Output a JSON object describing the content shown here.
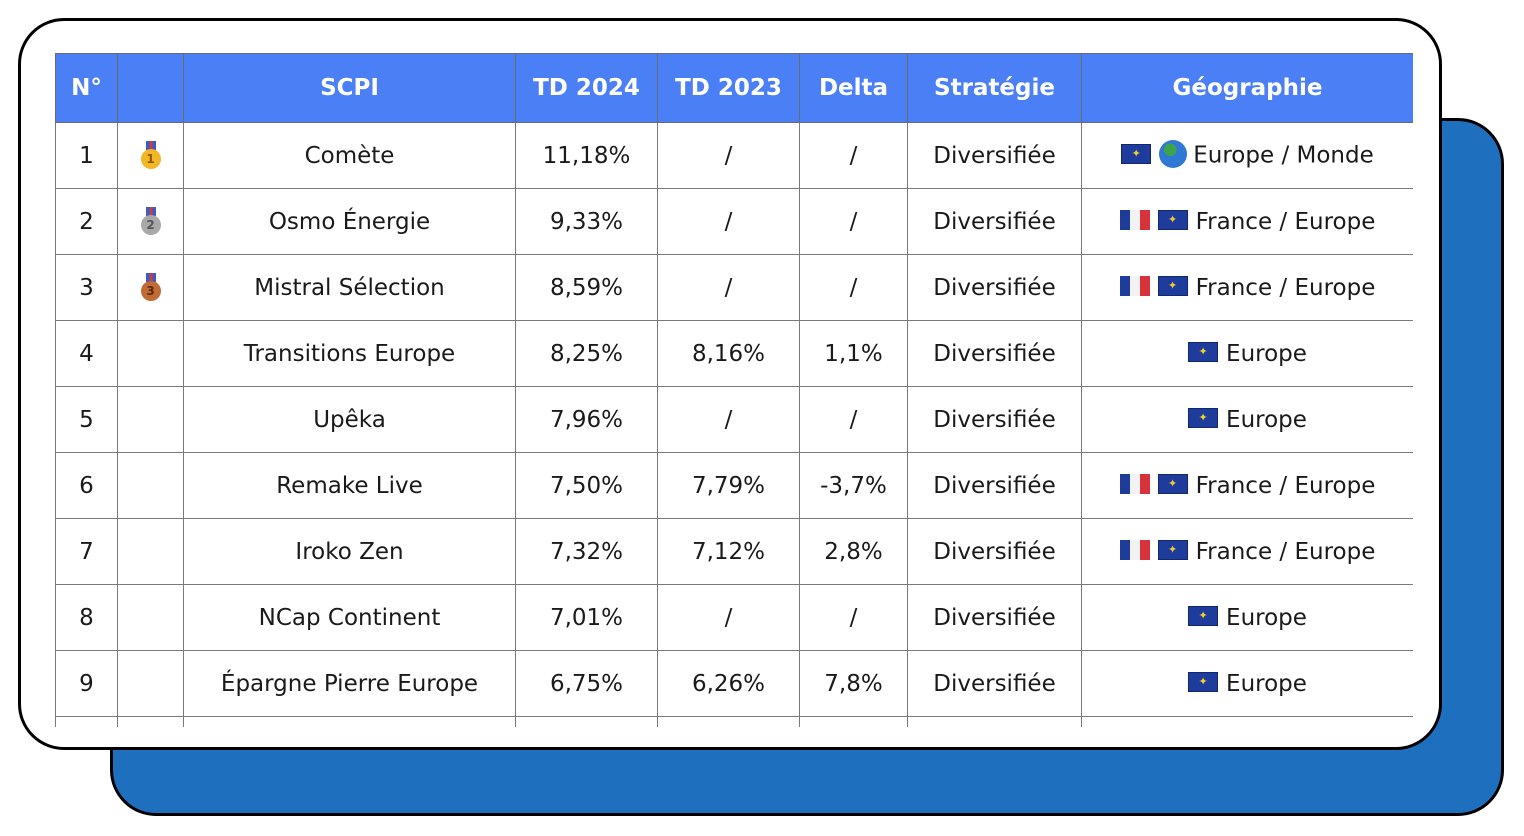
{
  "table": {
    "headers": [
      "N°",
      "",
      "SCPI",
      "TD 2024",
      "TD 2023",
      "Delta",
      "Stratégie",
      "Géographie"
    ],
    "rows": [
      {
        "num": "1",
        "medal": "gold",
        "medal_digit": "1",
        "scpi": "Comète",
        "td2024": "11,18%",
        "td2023": "/",
        "delta": "/",
        "strategie": "Diversifiée",
        "flags": [
          "eu-flag-icon",
          "globe-icon"
        ],
        "geo": "Europe / Monde"
      },
      {
        "num": "2",
        "medal": "silver",
        "medal_digit": "2",
        "scpi": "Osmo Énergie",
        "td2024": "9,33%",
        "td2023": "/",
        "delta": "/",
        "strategie": "Diversifiée",
        "flags": [
          "france-flag-icon",
          "eu-flag-icon"
        ],
        "geo": "France / Europe"
      },
      {
        "num": "3",
        "medal": "bronze",
        "medal_digit": "3",
        "scpi": "Mistral Sélection",
        "td2024": "8,59%",
        "td2023": "/",
        "delta": "/",
        "strategie": "Diversifiée",
        "flags": [
          "france-flag-icon",
          "eu-flag-icon"
        ],
        "geo": "France / Europe"
      },
      {
        "num": "4",
        "medal": "",
        "medal_digit": "",
        "scpi": "Transitions Europe",
        "td2024": "8,25%",
        "td2023": "8,16%",
        "delta": "1,1%",
        "strategie": "Diversifiée",
        "flags": [
          "eu-flag-icon"
        ],
        "geo": "Europe"
      },
      {
        "num": "5",
        "medal": "",
        "medal_digit": "",
        "scpi": "Upêka",
        "td2024": "7,96%",
        "td2023": "/",
        "delta": "/",
        "strategie": "Diversifiée",
        "flags": [
          "eu-flag-icon"
        ],
        "geo": "Europe"
      },
      {
        "num": "6",
        "medal": "",
        "medal_digit": "",
        "scpi": "Remake Live",
        "td2024": "7,50%",
        "td2023": "7,79%",
        "delta": "-3,7%",
        "strategie": "Diversifiée",
        "flags": [
          "france-flag-icon",
          "eu-flag-icon"
        ],
        "geo": "France / Europe"
      },
      {
        "num": "7",
        "medal": "",
        "medal_digit": "",
        "scpi": "Iroko Zen",
        "td2024": "7,32%",
        "td2023": "7,12%",
        "delta": "2,8%",
        "strategie": "Diversifiée",
        "flags": [
          "france-flag-icon",
          "eu-flag-icon"
        ],
        "geo": "France / Europe"
      },
      {
        "num": "8",
        "medal": "",
        "medal_digit": "",
        "scpi": "NCap Continent",
        "td2024": "7,01%",
        "td2023": "/",
        "delta": "/",
        "strategie": "Diversifiée",
        "flags": [
          "eu-flag-icon"
        ],
        "geo": "Europe"
      },
      {
        "num": "9",
        "medal": "",
        "medal_digit": "",
        "scpi": "Épargne Pierre Europe",
        "td2024": "6,75%",
        "td2023": "6,26%",
        "delta": "7,8%",
        "strategie": "Diversifiée",
        "flags": [
          "eu-flag-icon"
        ],
        "geo": "Europe"
      }
    ]
  },
  "colors": {
    "header_bg": "#4a7ff5",
    "back_card": "#1f6fbf"
  }
}
